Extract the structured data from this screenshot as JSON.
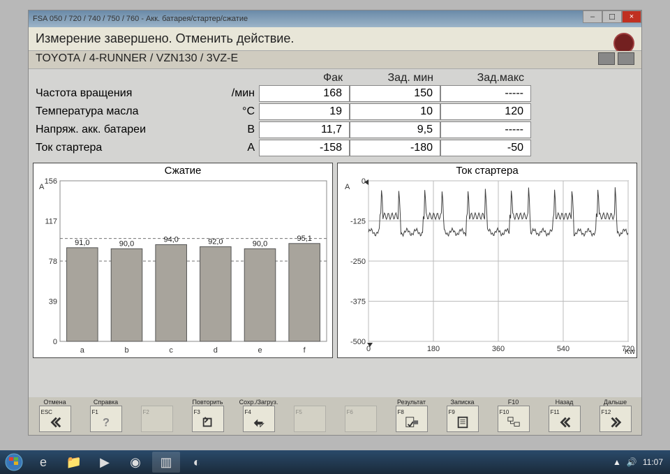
{
  "window": {
    "title": "FSA 050 / 720 / 740 / 750 / 760 - Акк. батарея/стартер/сжатие",
    "status": "Измерение завершено. Отменить действие.",
    "vehicle": "TOYOTA / 4-RUNNER / VZN130 / 3VZ-E"
  },
  "headers": {
    "fak": "Фак",
    "zmin": "Зад. мин",
    "zmax": "Зад.макс"
  },
  "rows": [
    {
      "label": "Частота вращения",
      "unit": "/мин",
      "fak": "168",
      "zmin": "150",
      "zmax": "-----"
    },
    {
      "label": "Температура масла",
      "unit": "°C",
      "fak": "19",
      "zmin": "10",
      "zmax": "120"
    },
    {
      "label": "Напряж. акк. батареи",
      "unit": "В",
      "fak": "11,7",
      "zmin": "9,5",
      "zmax": "-----"
    },
    {
      "label": "Ток стартера",
      "unit": "А",
      "fak": "-158",
      "zmin": "-180",
      "zmax": "-50"
    }
  ],
  "compression_chart": {
    "title": "Сжатие",
    "y_unit": "A",
    "ymax": 156,
    "ymin": 0,
    "yticks": [
      0,
      39,
      78,
      117,
      156
    ],
    "ref_lines": [
      78,
      100
    ],
    "bar_color": "#a8a49c",
    "ref_color": "#707070",
    "grid_color": "#888888",
    "bg": "#ffffff",
    "categories": [
      "a",
      "b",
      "c",
      "d",
      "e",
      "f"
    ],
    "values": [
      91.0,
      90.0,
      94.0,
      92.0,
      90.0,
      95.1
    ],
    "labels": [
      "91,0",
      "90,0",
      "94,0",
      "92,0",
      "90,0",
      "95,1"
    ],
    "label_fontsize": 11
  },
  "current_chart": {
    "title": "Ток стартера",
    "y_unit": "A",
    "x_unit": "Kw",
    "ymin": -500,
    "ymax": 0,
    "yticks": [
      0,
      -125,
      -250,
      -375,
      -500
    ],
    "xmin": 0,
    "xmax": 720,
    "xticks": [
      0,
      180,
      360,
      540,
      720
    ],
    "line_color": "#404040",
    "grid_color": "#bbbbbb",
    "bg": "#ffffff",
    "baseline": -160,
    "peak_low": -110,
    "spike_high": -20,
    "cycles": 6
  },
  "fkeys": [
    {
      "label": "Отмена",
      "code": "ESC",
      "icon": "chevrons-left",
      "enabled": true
    },
    {
      "label": "Справка",
      "code": "F1",
      "icon": "question",
      "enabled": true
    },
    {
      "label": "",
      "code": "F2",
      "icon": "",
      "enabled": false
    },
    {
      "label": "Повторить",
      "code": "F3",
      "icon": "redo",
      "enabled": true
    },
    {
      "label": "Сохр./Загруз.",
      "code": "F4",
      "icon": "transfer",
      "enabled": true
    },
    {
      "label": "",
      "code": "F5",
      "icon": "",
      "enabled": false
    },
    {
      "label": "",
      "code": "F6",
      "icon": "",
      "enabled": false
    },
    {
      "label": "Результат",
      "code": "F8",
      "icon": "result",
      "enabled": true
    },
    {
      "label": "Записка",
      "code": "F9",
      "icon": "note",
      "enabled": true
    },
    {
      "label": "F10",
      "code": "F10",
      "icon": "tree",
      "enabled": true
    },
    {
      "label": "Назад",
      "code": "F11",
      "icon": "chevrons-left",
      "enabled": true
    },
    {
      "label": "Дальше",
      "code": "F12",
      "icon": "chevrons-right",
      "enabled": true
    }
  ],
  "taskbar": {
    "clock": "11:07",
    "icons": [
      "start",
      "ie",
      "folder",
      "play",
      "disc",
      "app",
      "extra"
    ]
  }
}
